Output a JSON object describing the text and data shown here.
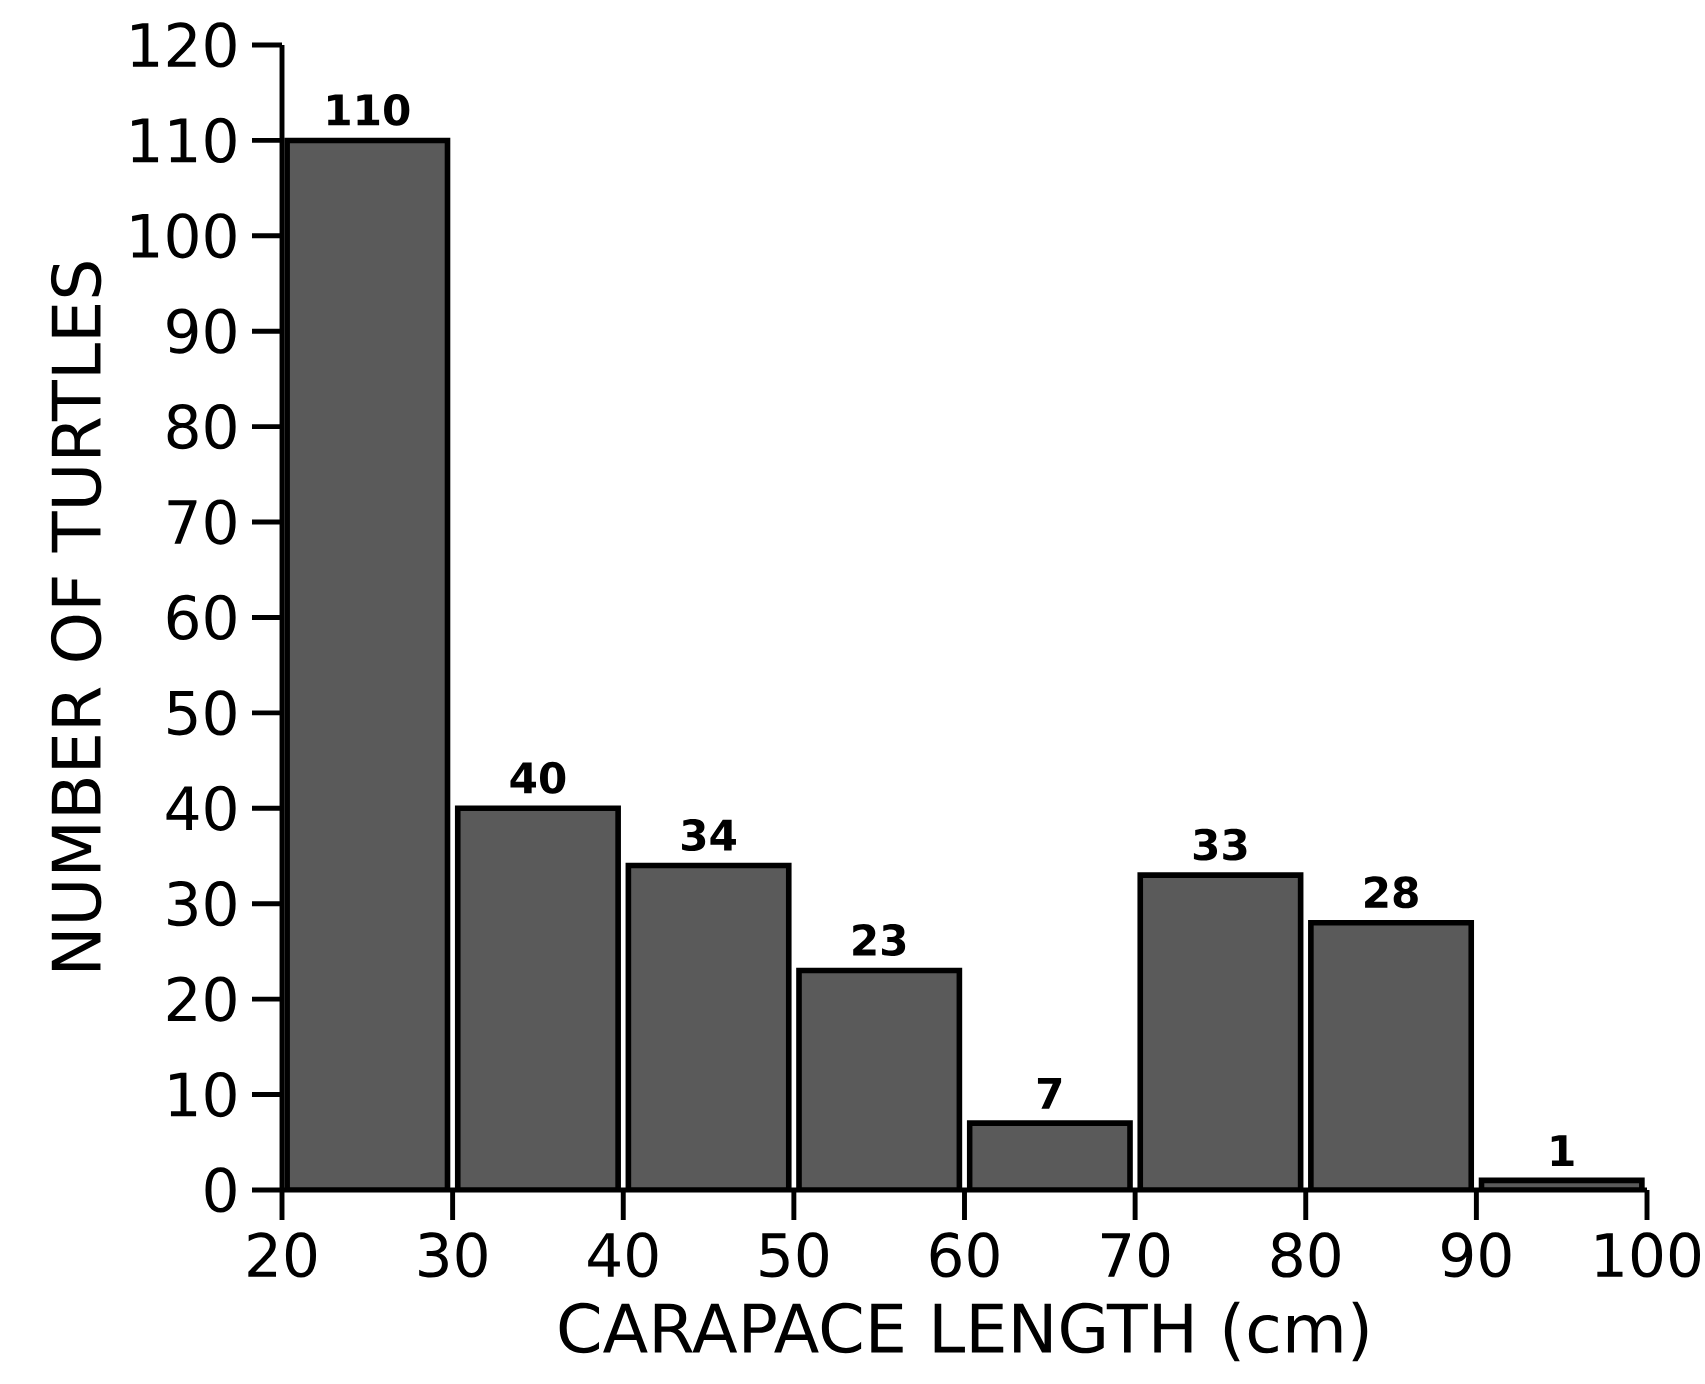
{
  "chart_data": {
    "type": "histogram",
    "xlabel": "CARAPACE LENGTH (cm)",
    "ylabel": "NUMBER OF TURTLES",
    "bins": [
      20,
      30,
      40,
      50,
      60,
      70,
      80,
      90,
      100
    ],
    "values": [
      110,
      40,
      34,
      23,
      7,
      33,
      28,
      1
    ],
    "color": "#5a5a5a",
    "xlim": [
      20,
      100
    ],
    "xticks": [
      20,
      30,
      40,
      50,
      60,
      70,
      80,
      90,
      100
    ],
    "ylim": [
      0,
      120
    ],
    "yticks": [
      0,
      10,
      20,
      30,
      40,
      50,
      60,
      70,
      80,
      90,
      100,
      110,
      120
    ],
    "data_labels": true,
    "grid": false
  }
}
